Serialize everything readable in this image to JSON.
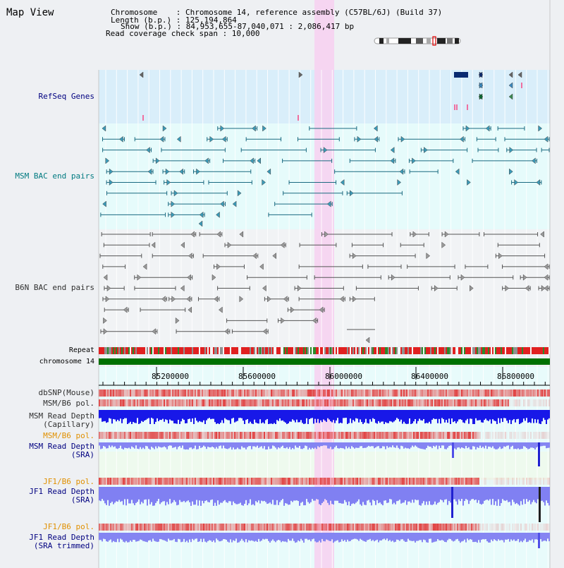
{
  "title": "Map View",
  "header": {
    "lines": [
      "Chromosome    : Chromosome 14, reference assembly (C57BL/6J) (Build 37)",
      "Length (b.p.) : 125,194,864",
      "Show (b.p.) : 84,953,655-87,040,071 : 2,086,417 bp",
      "Read coverage check span : 10,000"
    ]
  },
  "tracks": {
    "refseq": "RefSeq Genes",
    "msm_bac": "MSM BAC end pairs",
    "b6n_bac": "B6N BAC end pairs",
    "repeat": "Repeat",
    "chromosome": "chromosome 14",
    "dbsnp": "dbSNP(Mouse)",
    "msm_b6_pol_1": "MSM/B6 pol.",
    "msm_depth_cap_1": "MSM Read Depth",
    "msm_depth_cap_2": "(Capillary)",
    "msm_b6_pol_2": "MSM/B6 pol.",
    "msm_depth_sra_1": "MSM Read Depth",
    "msm_depth_sra_2": "(SRA)",
    "jf1_b6_pol_1": "JF1/B6 pol.",
    "jf1_depth_sra_1": "JF1 Read Depth",
    "jf1_depth_sra_2": "(SRA)",
    "jf1_b6_pol_2": "JF1/B6 pol.",
    "jf1_depth_trim_1": "JF1 Read Depth",
    "jf1_depth_trim_2": "(SRA trimmed)"
  },
  "axis": {
    "ticks": [
      "85200000",
      "85600000",
      "86000000",
      "86400000",
      "86800000"
    ]
  },
  "colors": {
    "refseq_bg": "#daeefa",
    "msm_bg": "#e6fbfb",
    "light_bg": "#e8fbfb",
    "highlight": "#f6d2f0",
    "chrom": "#007000",
    "depth_blue": "#1010e0",
    "depth_light": "#8080f0",
    "pol_red": "#e04848"
  }
}
